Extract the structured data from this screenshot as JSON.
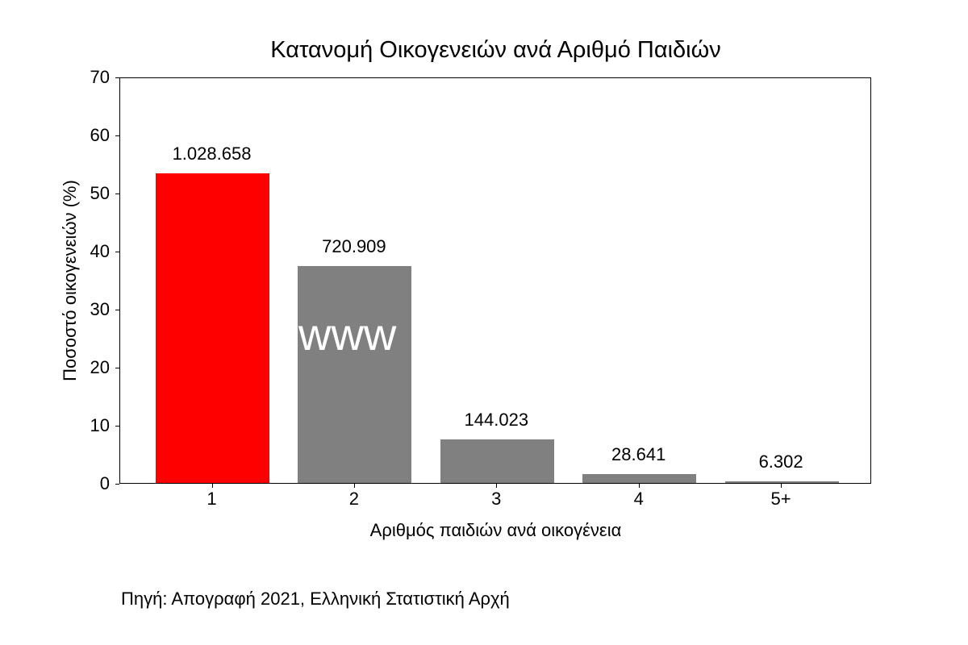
{
  "chart_data": {
    "type": "bar",
    "title": "Κατανομή Οικογενειών ανά Αριθμό Παιδιών",
    "xlabel": "Αριθμός παιδιών ανά οικογένεια",
    "ylabel": "Ποσοστό οικογενειών (%)",
    "categories": [
      "1",
      "2",
      "3",
      "4",
      "5+"
    ],
    "values": [
      53.34,
      37.38,
      7.47,
      1.49,
      0.33
    ],
    "data_labels": [
      "1.028.658",
      "720.909",
      "144.023",
      "28.641",
      "6.302"
    ],
    "counts": [
      1028658,
      720909,
      144023,
      28641,
      6302
    ],
    "colors": [
      "#ff0000",
      "#808080",
      "#808080",
      "#808080",
      "#808080"
    ],
    "ylim": [
      0,
      70
    ],
    "yticks": [
      "0",
      "10",
      "20",
      "30",
      "40",
      "50",
      "60",
      "70"
    ],
    "grid": false,
    "annotations": [
      "www"
    ],
    "source": "Πηγή: Απογραφή 2021, Ελληνική Στατιστική Αρχή"
  }
}
